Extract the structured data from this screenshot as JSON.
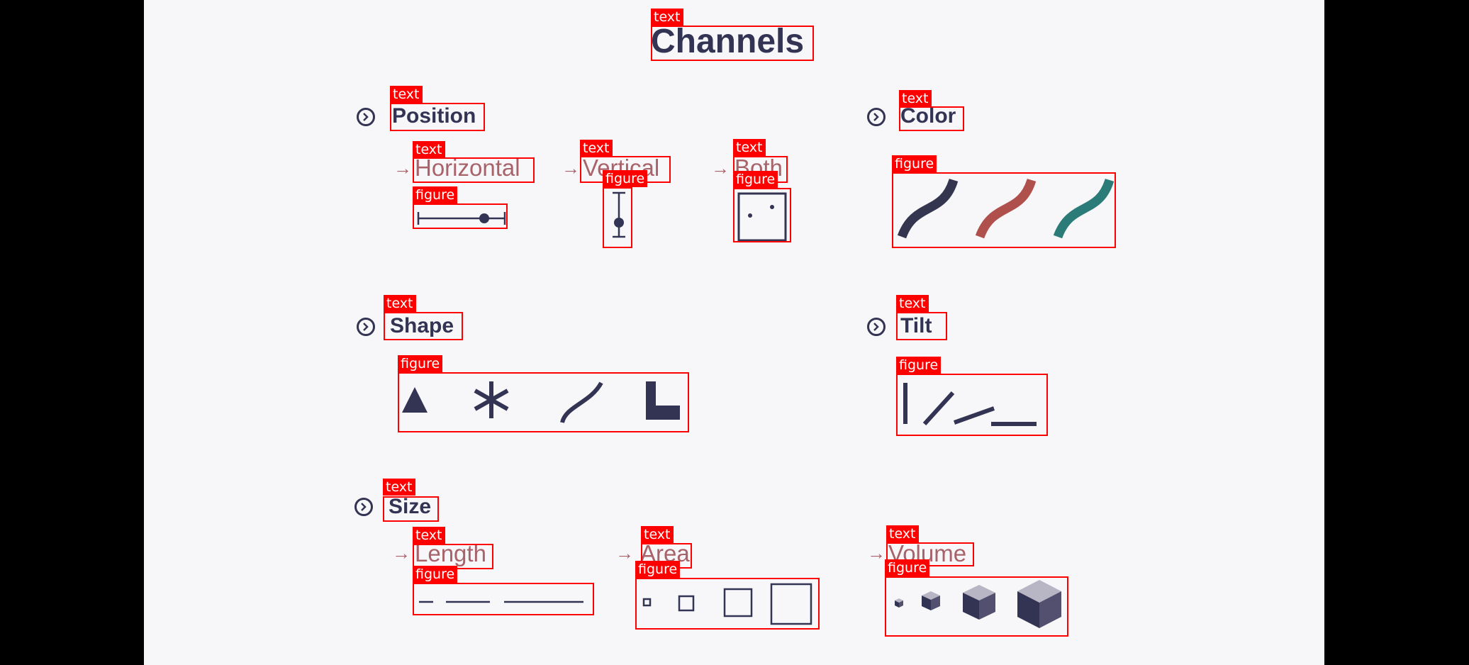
{
  "title": "Channels",
  "annotation_labels": {
    "text": "text",
    "figure": "figure"
  },
  "sections": {
    "position": {
      "heading": "Position",
      "horizontal": "Horizontal",
      "vertical": "Vertical",
      "both": "Both"
    },
    "color": {
      "heading": "Color",
      "stroke_colors": [
        "#34354f",
        "#b0504c",
        "#2b7c79"
      ]
    },
    "shape": {
      "heading": "Shape"
    },
    "tilt": {
      "heading": "Tilt"
    },
    "size": {
      "heading": "Size",
      "length": "Length",
      "area": "Area",
      "volume": "Volume"
    }
  },
  "colors": {
    "ink": "#333454",
    "accent": "#a8636a",
    "annotation": "#ff0000",
    "background": "#f7f7f9"
  }
}
